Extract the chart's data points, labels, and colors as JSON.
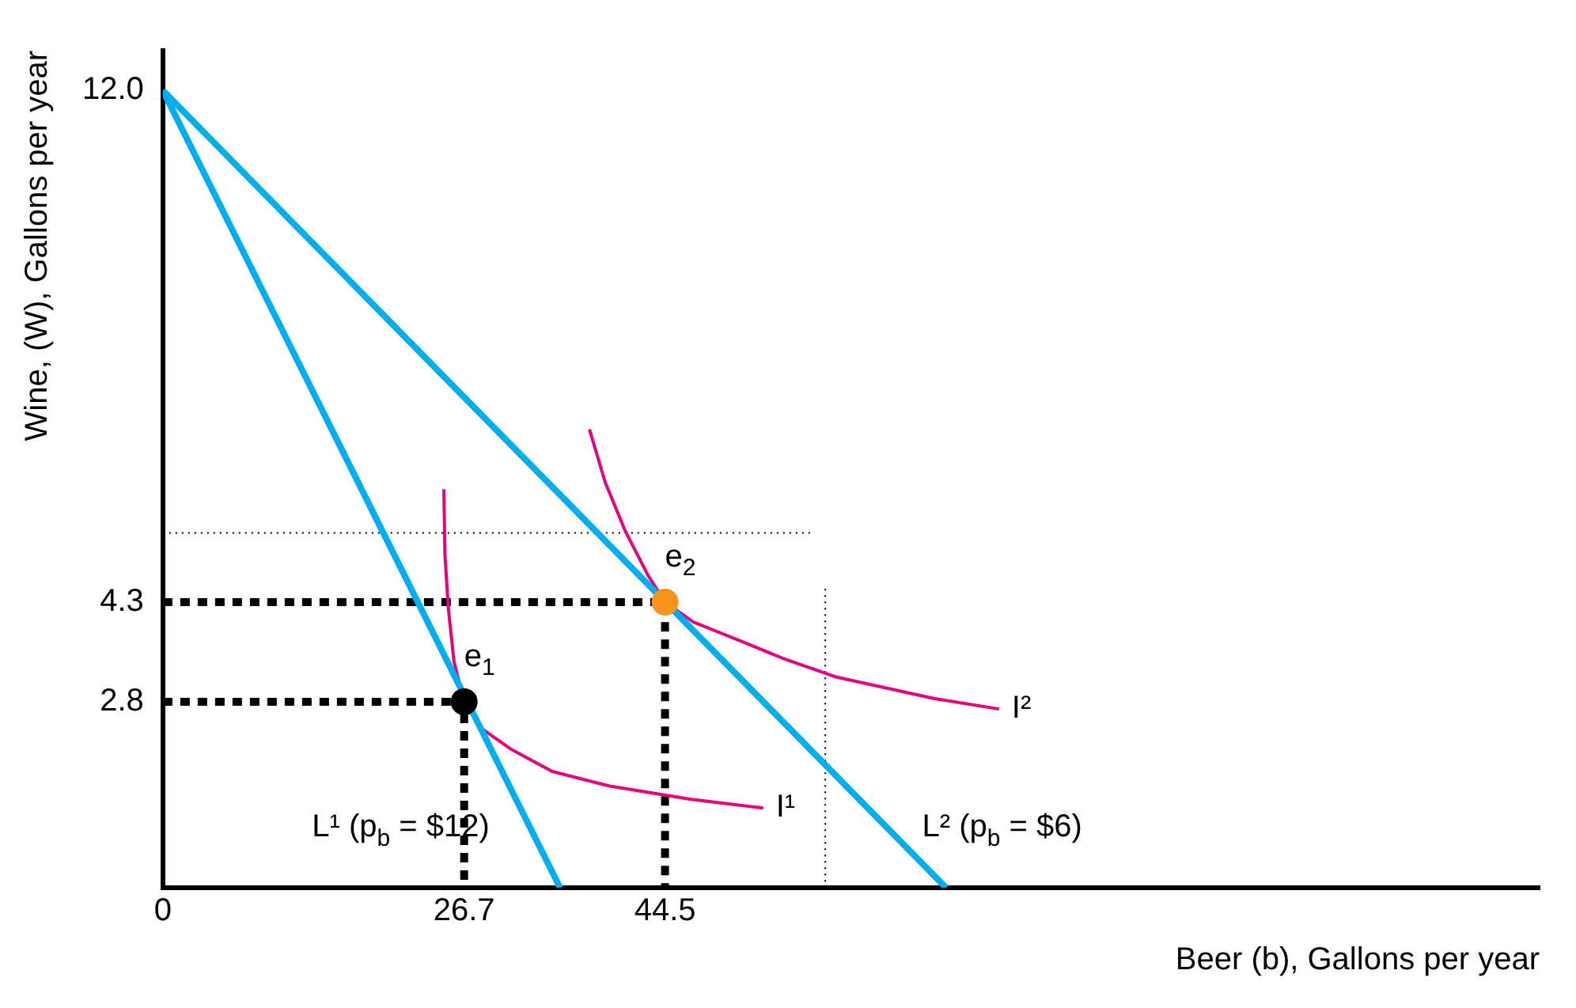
{
  "chart_data": {
    "type": "line",
    "xlabel": "Beer (b), Gallons per year",
    "ylabel": "Wine, (W), Gallons per year",
    "xlim": [
      0,
      122
    ],
    "ylim": [
      0,
      12.6
    ],
    "xticks": [
      0,
      26.7,
      44.5
    ],
    "yticks": [
      2.8,
      4.3,
      {
        "value": 12,
        "label": "12.0"
      }
    ],
    "grid": false,
    "legend": false,
    "series": [
      {
        "color": "#00aeef",
        "x": [
          0,
          35.2
        ],
        "values": [
          12,
          0
        ],
        "line_style": "solid"
      },
      {
        "color": "#00aeef",
        "x": [
          0,
          69.4
        ],
        "values": [
          12,
          0
        ],
        "line_style": "solid"
      },
      {
        "type": "line",
        "color": "#e6007e",
        "x": [
          24.9,
          25.0,
          25.3,
          25.8,
          26.7,
          28.2,
          30.9,
          34.5,
          39.6,
          46.8,
          53.2
        ],
        "values": [
          6.0,
          5.0,
          4.2,
          3.4,
          2.8,
          2.4,
          2.08,
          1.75,
          1.53,
          1.33,
          1.2
        ],
        "line_style": "solid"
      },
      {
        "type": "line",
        "color": "#e6007e",
        "x": [
          37.8,
          39.2,
          41.0,
          43.0,
          44.5,
          47.0,
          51.1,
          55.0,
          59.7,
          68.3,
          74.1
        ],
        "values": [
          6.9,
          6.1,
          5.36,
          4.7,
          4.3,
          4.0,
          3.72,
          3.45,
          3.17,
          2.85,
          2.69
        ],
        "line_style": "solid"
      },
      {
        "type": "line",
        "color": "#000000",
        "x": [
          0,
          44.5,
          44.5
        ],
        "values": [
          4.3,
          4.3,
          0
        ],
        "line_style": "dashed"
      },
      {
        "type": "line",
        "color": "#000000",
        "x": [
          0,
          26.7,
          26.7
        ],
        "values": [
          2.8,
          2.8,
          0
        ],
        "line_style": "dashed"
      },
      {
        "type": "line",
        "color": "#000000",
        "x": [
          0,
          57.5
        ],
        "values": [
          5.34,
          5.34
        ],
        "line_style": "dotted"
      },
      {
        "type": "line",
        "color": "#000000",
        "x": [
          58.7,
          58.7
        ],
        "values": [
          4.5,
          0
        ],
        "line_style": "dotted"
      },
      {
        "type": "scatter",
        "x": [
          26.7,
          44.5
        ],
        "values": [
          2.8,
          4.3
        ],
        "colors": [
          "#000000",
          "#f7941d"
        ],
        "marker": "circle"
      }
    ],
    "annotations": [
      {
        "text": "e$_{1}$",
        "x": 26.7,
        "y": 2.8
      },
      {
        "text": "e$_{2}$",
        "x": 44.5,
        "y": 4.3
      },
      {
        "text": "I¹",
        "x": 53.2,
        "y": 1.2
      },
      {
        "text": "I²",
        "x": 74.1,
        "y": 2.69
      },
      {
        "text": "L¹ (p$_{b}$ = $12)",
        "x": 32.6,
        "y": 0.9
      },
      {
        "text": "L² (p$_{b}$ = $6)",
        "x": 64.2,
        "y": 0.9
      }
    ]
  }
}
